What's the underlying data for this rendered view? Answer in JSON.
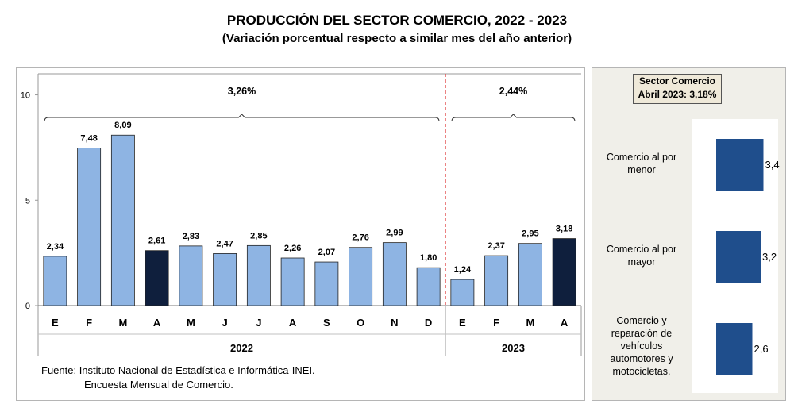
{
  "title": "PRODUCCIÓN DEL SECTOR COMERCIO, 2022 - 2023",
  "subtitle": "(Variación porcentual respecto a similar mes del año anterior)",
  "chart_data": [
    {
      "type": "bar",
      "categories": [
        "E",
        "F",
        "M",
        "A",
        "M",
        "J",
        "J",
        "A",
        "S",
        "O",
        "N",
        "D",
        "E",
        "F",
        "M",
        "A"
      ],
      "values": [
        2.34,
        7.48,
        8.09,
        2.61,
        2.83,
        2.47,
        2.85,
        2.26,
        2.07,
        2.76,
        2.99,
        1.8,
        1.24,
        2.37,
        2.95,
        3.18
      ],
      "value_labels": [
        "2,34",
        "7,48",
        "8,09",
        "2,61",
        "2,83",
        "2,47",
        "2,85",
        "2,26",
        "2,07",
        "2,76",
        "2,99",
        "1,80",
        "1,24",
        "2,37",
        "2,95",
        "3,18"
      ],
      "highlight_indices": [
        3,
        15
      ],
      "colors": {
        "bar": "#8eb4e3",
        "highlight": "#0f1f3d",
        "divider": "#e04040"
      },
      "years": [
        {
          "label": "2022",
          "range_label": "3,26%",
          "start": 0,
          "end": 11
        },
        {
          "label": "2023",
          "range_label": "2,44%",
          "start": 12,
          "end": 15
        }
      ],
      "yticks": [
        "0",
        "5",
        "10"
      ],
      "ylim": [
        0,
        11
      ],
      "grid": false
    },
    {
      "type": "bar",
      "orientation": "horizontal",
      "categories": [
        "Comercio al por menor",
        "Comercio al por mayor",
        "Comercio y reparación de vehículos automotores y motocicletas."
      ],
      "category_lines": [
        [
          "Comercio al por",
          "menor"
        ],
        [
          "Comercio al por",
          "mayor"
        ],
        [
          "Comercio y",
          "reparación de",
          "vehículos",
          "automotores y",
          "motocicletas."
        ]
      ],
      "values": [
        3.4,
        3.2,
        2.6
      ],
      "value_labels": [
        "3,4",
        "3,2",
        "2,6"
      ],
      "colors": {
        "bar": "#1f4e8c"
      }
    }
  ],
  "summary": {
    "line1": "Sector Comercio",
    "line2": "Abril 2023: 3,18%"
  },
  "source": {
    "line1": "Fuente: Instituto Nacional de Estadística e Informática-INEI.",
    "line2": "Encuesta Mensual de Comercio."
  }
}
